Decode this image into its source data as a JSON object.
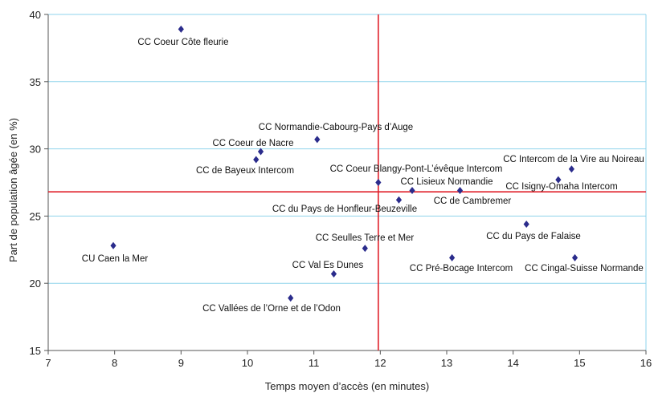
{
  "chart_data": {
    "type": "scatter",
    "xlabel": "Temps moyen d’accès (en minutes)",
    "ylabel": "Part de population âgée (en %)",
    "xlim": [
      7,
      16
    ],
    "ylim": [
      15,
      40
    ],
    "xticks": [
      7,
      8,
      9,
      10,
      11,
      12,
      13,
      14,
      15,
      16
    ],
    "yticks": [
      15,
      20,
      25,
      30,
      35,
      40
    ],
    "grid": "horizontal",
    "marker": "diamond",
    "marker_color": "#2b2c8c",
    "reference_lines": {
      "x": 11.97,
      "y": 26.8,
      "color": "#e0202a"
    },
    "points": [
      {
        "label": "CC Coeur Côte fleurie",
        "x": 9.0,
        "y": 38.9
      },
      {
        "label": "CC Normandie-Cabourg-Pays d’Auge",
        "x": 11.05,
        "y": 30.7
      },
      {
        "label": "CC Coeur de Nacre",
        "x": 10.2,
        "y": 29.8
      },
      {
        "label": "CC de Bayeux Intercom",
        "x": 10.13,
        "y": 29.2
      },
      {
        "label": "CC Coeur Blangy-Pont-L’évêque Intercom",
        "x": 11.97,
        "y": 27.5
      },
      {
        "label": "CC Lisieux Normandie",
        "x": 12.48,
        "y": 26.9
      },
      {
        "label": "CC de Cambremer",
        "x": 13.2,
        "y": 26.9
      },
      {
        "label": "CC du Pays de Honfleur-Beuzeville",
        "x": 12.28,
        "y": 26.2
      },
      {
        "label": "CC Intercom de la Vire au Noireau",
        "x": 14.88,
        "y": 28.5
      },
      {
        "label": "CC Isigny-Omaha Intercom",
        "x": 14.68,
        "y": 27.7
      },
      {
        "label": "CC du Pays de Falaise",
        "x": 14.2,
        "y": 24.4
      },
      {
        "label": "CU Caen la Mer",
        "x": 7.98,
        "y": 22.8
      },
      {
        "label": "CC Seulles Terre et Mer",
        "x": 11.77,
        "y": 22.6
      },
      {
        "label": "CC Val Es Dunes",
        "x": 11.3,
        "y": 20.7
      },
      {
        "label": "CC Pré-Bocage Intercom",
        "x": 13.08,
        "y": 21.9
      },
      {
        "label": "CC Cingal-Suisse Normande",
        "x": 14.93,
        "y": 21.9
      },
      {
        "label": "CC Vallées de l’Orne et de l’Odon",
        "x": 10.65,
        "y": 18.9
      }
    ]
  }
}
